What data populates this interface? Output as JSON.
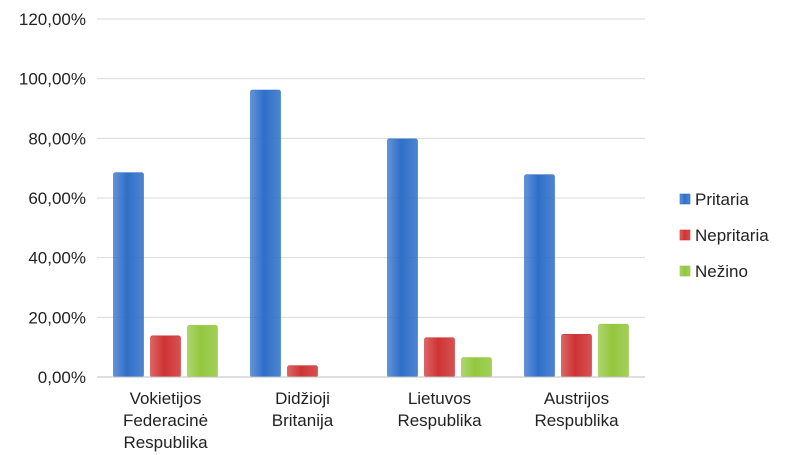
{
  "chart_data": {
    "type": "bar",
    "categories": [
      [
        "Vokietijos",
        "Federacinė",
        "Respublika"
      ],
      [
        "Didžioji",
        "Britanija"
      ],
      [
        "Lietuvos",
        "Respublika"
      ],
      [
        "Austrijos",
        "Respublika"
      ]
    ],
    "series": [
      {
        "name": "Pritaria",
        "values": [
          68.5,
          96.2,
          79.8,
          67.8
        ]
      },
      {
        "name": "Nepritaria",
        "values": [
          13.8,
          3.8,
          13.2,
          14.3
        ]
      },
      {
        "name": "Nežino",
        "values": [
          17.3,
          0,
          6.5,
          17.7
        ]
      }
    ],
    "colors": [
      "#2f6fc8",
      "#cf3333",
      "#93c73d"
    ],
    "ylim": [
      0,
      120
    ],
    "yticks": [
      "0,00%",
      "20,00%",
      "40,00%",
      "60,00%",
      "80,00%",
      "100,00%",
      "120,00%"
    ],
    "grid": true,
    "legend": "right"
  }
}
